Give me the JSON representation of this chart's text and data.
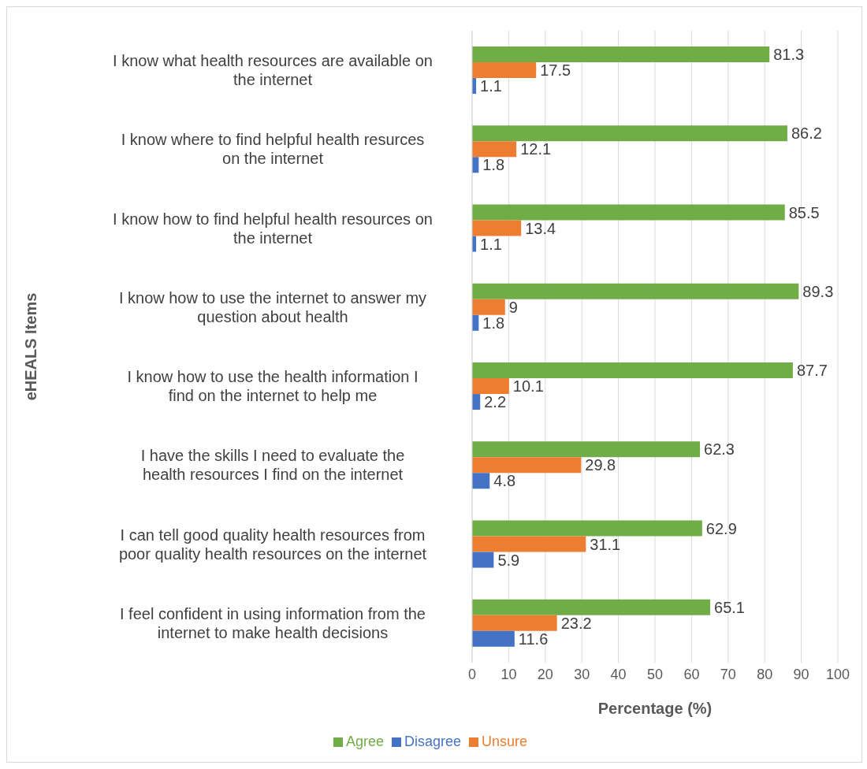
{
  "chart_data": {
    "type": "bar",
    "orientation": "horizontal",
    "xlabel": "Percentage (%)",
    "ylabel": "eHEALS Items",
    "categories": [
      "I know what health resources are available on the internet",
      "I know where to find helpful health resurces on the internet",
      "I know how to find helpful health resources on the internet",
      "I know how to use the internet to answer my question about health",
      "I know how to use the health information I find on the internet to help me",
      "I have the skills I need to evaluate the health resources I find on the internet",
      "I can tell good quality health resources from poor quality health resources on the internet",
      "I feel confident in using information from the internet to make health decisions"
    ],
    "series": [
      {
        "name": "Agree",
        "color": "#70ad47",
        "values": [
          81.3,
          86.2,
          85.5,
          89.3,
          87.7,
          62.3,
          62.9,
          65.1
        ]
      },
      {
        "name": "Unsure",
        "color": "#ed7d31",
        "values": [
          17.5,
          12.1,
          13.4,
          9,
          10.1,
          29.8,
          31.1,
          23.2
        ]
      },
      {
        "name": "Disagree",
        "color": "#4472c4",
        "values": [
          1.1,
          1.8,
          1.1,
          1.8,
          2.2,
          4.8,
          5.9,
          11.6
        ]
      }
    ],
    "xlim": [
      0,
      100
    ],
    "xticks": [
      0,
      10,
      20,
      30,
      40,
      50,
      60,
      70,
      80,
      90,
      100
    ],
    "grid": "x",
    "legend": "bottom",
    "data_labels": true
  }
}
